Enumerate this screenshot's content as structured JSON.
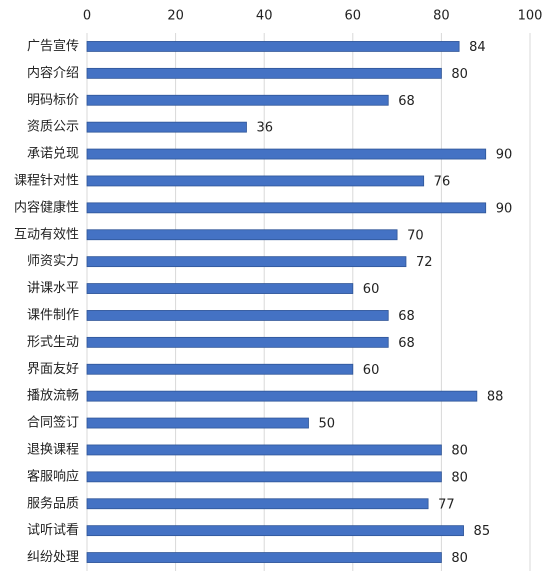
{
  "chart_data": {
    "type": "barh",
    "categories": [
      "广告宣传",
      "内容介绍",
      "明码标价",
      "资质公示",
      "承诺兑现",
      "课程针对性",
      "内容健康性",
      "互动有效性",
      "师资实力",
      "讲课水平",
      "课件制作",
      "形式生动",
      "界面友好",
      "播放流畅",
      "合同签订",
      "退换课程",
      "客服响应",
      "服务品质",
      "试听试看",
      "纠纷处理"
    ],
    "values": [
      84,
      80,
      68,
      36,
      90,
      76,
      90,
      70,
      72,
      60,
      68,
      68,
      60,
      88,
      50,
      80,
      80,
      77,
      85,
      80
    ],
    "color": "#4472c4",
    "xlim": [
      0,
      100
    ],
    "xticks": [
      0,
      20,
      40,
      60,
      80,
      100
    ],
    "grid": true
  }
}
